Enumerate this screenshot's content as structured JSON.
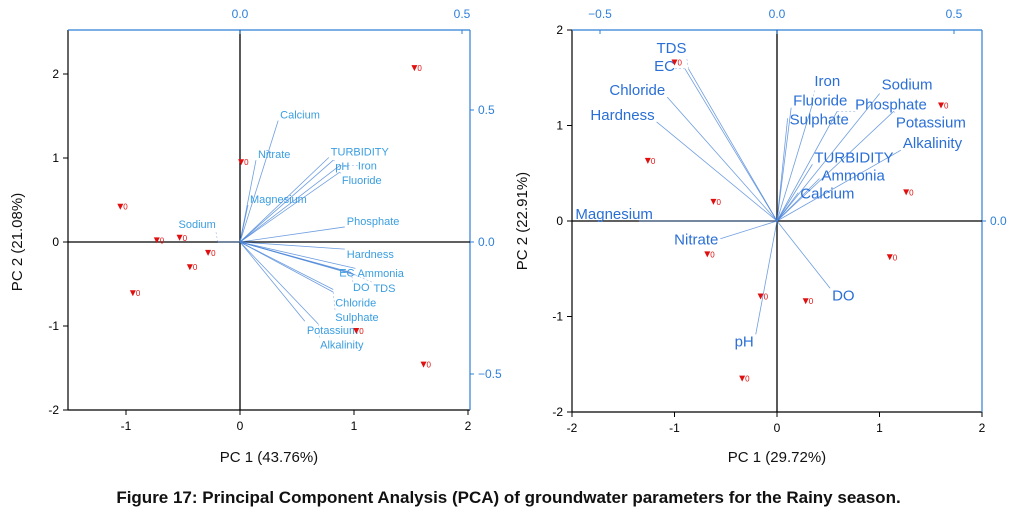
{
  "caption": "Figure 17: Principal Component Analysis (PCA) of groundwater parameters for the Rainy season.",
  "colors": {
    "axis": "#000000",
    "loading_axis": "#2f7fd8",
    "vector": "#4a84d8",
    "score": "#e01010",
    "label_left": "#3a9ee0",
    "label_right": "#2a6fd6"
  },
  "chart_data": [
    {
      "type": "scatter",
      "subtype": "biplot",
      "xlabel": "PC 1 (43.76%)",
      "ylabel": "PC 2 (21.08%)",
      "xlim": [
        -1.5,
        2
      ],
      "ylim": [
        -2,
        2.5
      ],
      "xticks": [
        -1,
        0,
        1,
        2
      ],
      "yticks": [
        -2,
        -1,
        0,
        1,
        2
      ],
      "top_ticks": [
        "0.0",
        "0.5"
      ],
      "top_tick_values": [
        0,
        0.5
      ],
      "right_ticks": [
        "0.5",
        "0.0",
        "−0.5"
      ],
      "right_tick_values": [
        0.5,
        0,
        -0.5
      ],
      "score_label": "0",
      "scores": [
        [
          -1.05,
          0.42
        ],
        [
          -0.73,
          0.02
        ],
        [
          -0.53,
          0.05
        ],
        [
          -0.44,
          -0.3
        ],
        [
          -0.28,
          -0.13
        ],
        [
          -0.94,
          -0.61
        ],
        [
          0.01,
          0.95
        ],
        [
          1.53,
          2.07
        ],
        [
          1.02,
          -1.06
        ],
        [
          1.61,
          -1.46
        ]
      ],
      "loadings": [
        {
          "name": "Calcium",
          "x": 0.086,
          "y": 0.46
        },
        {
          "name": "Nitrate",
          "x": 0.036,
          "y": 0.31
        },
        {
          "name": "Magnesium",
          "x": 0.018,
          "y": 0.14
        },
        {
          "name": "TURBIDITY",
          "x": 0.2,
          "y": 0.32
        },
        {
          "name": "pH",
          "x": 0.21,
          "y": 0.31
        },
        {
          "name": "Iron",
          "x": 0.225,
          "y": 0.29
        },
        {
          "name": "Fluoride",
          "x": 0.225,
          "y": 0.265
        },
        {
          "name": "Phosphate",
          "x": 0.236,
          "y": 0.057
        },
        {
          "name": "Sodium",
          "x": -0.05,
          "y": 0.0
        },
        {
          "name": "Hardness",
          "x": 0.236,
          "y": -0.027
        },
        {
          "name": "Ammonia",
          "x": 0.26,
          "y": -0.1
        },
        {
          "name": "DO",
          "x": 0.25,
          "y": -0.115
        },
        {
          "name": "TDS",
          "x": 0.26,
          "y": -0.125
        },
        {
          "name": "EC",
          "x": 0.255,
          "y": -0.12
        },
        {
          "name": "Chloride",
          "x": 0.21,
          "y": -0.18
        },
        {
          "name": "Sulphate",
          "x": 0.21,
          "y": -0.19
        },
        {
          "name": "Potassium",
          "x": 0.146,
          "y": -0.3
        },
        {
          "name": "Alkalinity",
          "x": 0.176,
          "y": -0.31
        }
      ]
    },
    {
      "type": "scatter",
      "subtype": "biplot",
      "xlabel": "PC 1 (29.72%)",
      "ylabel": "PC 2 (22.91%)",
      "xlim": [
        -2,
        2
      ],
      "ylim": [
        -2,
        2
      ],
      "xticks": [
        -2,
        -1,
        0,
        1,
        2
      ],
      "yticks": [
        -2,
        -1,
        0,
        1,
        2
      ],
      "top_ticks": [
        "−0.5",
        "0.0",
        "0.5"
      ],
      "top_tick_values": [
        -0.5,
        0,
        0.5
      ],
      "right_ticks": [
        "0.0"
      ],
      "right_tick_values": [
        0
      ],
      "score_label": "0",
      "scores": [
        [
          -1.0,
          1.66
        ],
        [
          -1.26,
          0.63
        ],
        [
          -0.62,
          0.2
        ],
        [
          -0.68,
          -0.35
        ],
        [
          -0.16,
          -0.79
        ],
        [
          0.28,
          -0.84
        ],
        [
          -0.34,
          -1.65
        ],
        [
          1.1,
          -0.38
        ],
        [
          1.26,
          0.3
        ],
        [
          1.6,
          1.21
        ]
      ],
      "loadings": [
        {
          "name": "TDS",
          "x": -0.25,
          "y": 0.43
        },
        {
          "name": "EC",
          "x": -0.26,
          "y": 0.43
        },
        {
          "name": "Chloride",
          "x": -0.31,
          "y": 0.35
        },
        {
          "name": "Hardness",
          "x": -0.34,
          "y": 0.28
        },
        {
          "name": "Magnesium",
          "x": -0.39,
          "y": 0.0
        },
        {
          "name": "Nitrate",
          "x": -0.16,
          "y": -0.05
        },
        {
          "name": "Fluoride",
          "x": 0.04,
          "y": 0.32
        },
        {
          "name": "Sulphate",
          "x": 0.03,
          "y": 0.29
        },
        {
          "name": "Iron",
          "x": 0.1,
          "y": 0.33
        },
        {
          "name": "Phosphate",
          "x": 0.17,
          "y": 0.31
        },
        {
          "name": "Sodium",
          "x": 0.29,
          "y": 0.36
        },
        {
          "name": "Potassium",
          "x": 0.33,
          "y": 0.31
        },
        {
          "name": "Alkalinity",
          "x": 0.35,
          "y": 0.2
        },
        {
          "name": "TURBIDITY",
          "x": 0.1,
          "y": 0.16
        },
        {
          "name": "Ammonia",
          "x": 0.12,
          "y": 0.12
        },
        {
          "name": "Calcium",
          "x": 0.06,
          "y": 0.08
        },
        {
          "name": "DO",
          "x": 0.15,
          "y": -0.19
        },
        {
          "name": "pH",
          "x": -0.06,
          "y": -0.32
        }
      ]
    }
  ]
}
